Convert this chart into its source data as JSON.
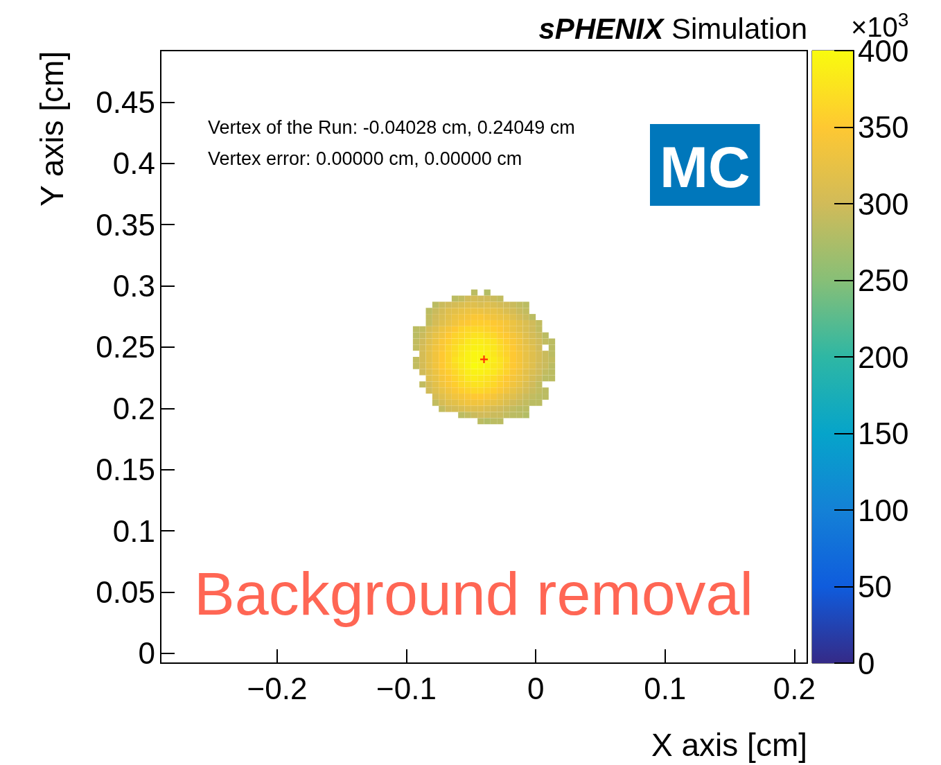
{
  "chart_data": {
    "type": "heatmap",
    "title": "sPHENIX Simulation",
    "xlabel": "X axis [cm]",
    "ylabel": "Y axis [cm]",
    "clabel": "×10$^{3}$",
    "xlim": [
      -0.29,
      0.21
    ],
    "ylim": [
      -0.008,
      0.492
    ],
    "xticks": [
      {
        "value": -0.2,
        "label": "−0.2"
      },
      {
        "value": -0.1,
        "label": "−0.1"
      },
      0,
      0.1,
      0.2
    ],
    "yticks": [
      0,
      0.05,
      0.1,
      0.15,
      0.2,
      0.25,
      0.3,
      0.35,
      0.4,
      0.45
    ],
    "clim": [
      0,
      400
    ],
    "cticks": [
      0,
      50,
      100,
      150,
      200,
      250,
      300,
      350,
      400
    ],
    "x": [
      -0.0925,
      -0.0875,
      -0.0825,
      -0.0775,
      -0.0725,
      -0.0675,
      -0.0625,
      -0.0575,
      -0.0525,
      -0.0475,
      -0.0425,
      -0.0375,
      -0.0325,
      -0.0275,
      -0.0225,
      -0.0175,
      -0.0125,
      -0.0075,
      -0.0025,
      0.0025,
      0.0075,
      0.0125
    ],
    "y": [
      0.2945,
      0.2895,
      0.2845,
      0.2795,
      0.2745,
      0.2695,
      0.2645,
      0.2595,
      0.2545,
      0.2495,
      0.2445,
      0.2395,
      0.2345,
      0.2295,
      0.2245,
      0.2195,
      0.2145,
      0.2095,
      0.2045,
      0.1995,
      0.1945,
      0.1895
    ],
    "cells": [
      [
        null,
        null,
        null,
        null,
        null,
        null,
        null,
        null,
        null,
        285,
        null,
        280,
        null,
        null,
        null,
        null,
        null,
        null,
        null,
        null,
        null,
        null
      ],
      [
        null,
        null,
        null,
        null,
        null,
        null,
        285,
        290,
        300,
        305,
        300,
        300,
        295,
        290,
        null,
        null,
        null,
        null,
        null,
        null,
        null,
        null
      ],
      [
        null,
        null,
        null,
        285,
        295,
        300,
        305,
        310,
        315,
        315,
        310,
        315,
        310,
        305,
        300,
        295,
        290,
        285,
        null,
        null,
        null,
        null
      ],
      [
        null,
        null,
        285,
        295,
        305,
        315,
        320,
        325,
        330,
        330,
        330,
        325,
        325,
        320,
        310,
        305,
        295,
        290,
        null,
        null,
        null,
        null
      ],
      [
        null,
        null,
        290,
        300,
        310,
        320,
        330,
        335,
        340,
        345,
        345,
        340,
        335,
        330,
        325,
        315,
        305,
        295,
        285,
        null,
        null,
        null
      ],
      [
        null,
        null,
        290,
        305,
        315,
        325,
        335,
        345,
        350,
        355,
        355,
        355,
        350,
        345,
        340,
        330,
        320,
        310,
        300,
        290,
        null,
        null
      ],
      [
        285,
        290,
        305,
        315,
        330,
        340,
        350,
        360,
        365,
        365,
        365,
        360,
        355,
        350,
        340,
        330,
        320,
        310,
        300,
        290,
        null,
        null
      ],
      [
        285,
        295,
        310,
        325,
        335,
        350,
        360,
        365,
        370,
        375,
        375,
        370,
        365,
        355,
        350,
        340,
        330,
        315,
        305,
        295,
        285,
        null
      ],
      [
        290,
        300,
        315,
        330,
        345,
        355,
        365,
        370,
        380,
        385,
        385,
        380,
        375,
        365,
        355,
        345,
        335,
        320,
        310,
        300,
        290,
        285
      ],
      [
        290,
        305,
        320,
        335,
        345,
        360,
        370,
        380,
        385,
        390,
        390,
        385,
        380,
        370,
        360,
        350,
        335,
        325,
        315,
        300,
        null,
        285
      ],
      [
        null,
        305,
        320,
        335,
        350,
        360,
        370,
        380,
        390,
        395,
        395,
        390,
        380,
        370,
        360,
        350,
        340,
        325,
        315,
        305,
        295,
        285
      ],
      [
        290,
        305,
        320,
        335,
        350,
        360,
        375,
        385,
        390,
        395,
        395,
        390,
        385,
        375,
        365,
        350,
        340,
        325,
        315,
        305,
        295,
        290
      ],
      [
        290,
        305,
        320,
        335,
        350,
        360,
        370,
        380,
        390,
        400,
        395,
        390,
        380,
        375,
        360,
        350,
        340,
        325,
        315,
        300,
        295,
        285
      ],
      [
        null,
        300,
        315,
        330,
        345,
        355,
        365,
        375,
        385,
        390,
        390,
        385,
        380,
        370,
        360,
        345,
        335,
        320,
        310,
        300,
        290,
        285
      ],
      [
        null,
        null,
        315,
        325,
        340,
        350,
        360,
        370,
        380,
        385,
        380,
        375,
        370,
        360,
        350,
        340,
        330,
        320,
        305,
        295,
        285,
        285
      ],
      [
        null,
        290,
        305,
        320,
        335,
        345,
        355,
        365,
        370,
        375,
        375,
        370,
        365,
        355,
        345,
        335,
        325,
        310,
        300,
        290,
        null,
        null
      ],
      [
        null,
        null,
        300,
        315,
        325,
        335,
        345,
        355,
        360,
        365,
        365,
        360,
        355,
        345,
        335,
        325,
        315,
        305,
        295,
        290,
        285,
        null
      ],
      [
        null,
        null,
        null,
        305,
        315,
        325,
        335,
        340,
        345,
        350,
        350,
        345,
        340,
        330,
        320,
        315,
        305,
        295,
        290,
        285,
        285,
        null
      ],
      [
        null,
        null,
        null,
        290,
        305,
        315,
        320,
        330,
        335,
        335,
        335,
        330,
        325,
        320,
        310,
        300,
        295,
        290,
        285,
        285,
        null,
        null
      ],
      [
        null,
        null,
        null,
        null,
        290,
        300,
        305,
        310,
        315,
        315,
        315,
        310,
        305,
        300,
        295,
        290,
        285,
        285,
        null,
        null,
        null,
        null
      ],
      [
        null,
        null,
        null,
        null,
        null,
        null,
        null,
        285,
        290,
        295,
        300,
        300,
        295,
        295,
        290,
        285,
        285,
        280,
        null,
        null,
        null,
        null
      ],
      [
        null,
        null,
        null,
        null,
        null,
        null,
        null,
        null,
        null,
        null,
        285,
        280,
        285,
        285,
        null,
        null,
        null,
        null,
        null,
        null,
        null,
        null
      ]
    ],
    "series": [
      {
        "type": "scatter",
        "x": [
          -0.04
        ],
        "values": [
          0.24
        ],
        "color": "#ff0000",
        "marker": "cross"
      }
    ],
    "annotations": [
      "Vertex of the Run: -0.04028 cm, 0.24049 cm",
      "Vertex error: 0.00000 cm, 0.00000 cm",
      "MC",
      "Background removal"
    ]
  }
}
